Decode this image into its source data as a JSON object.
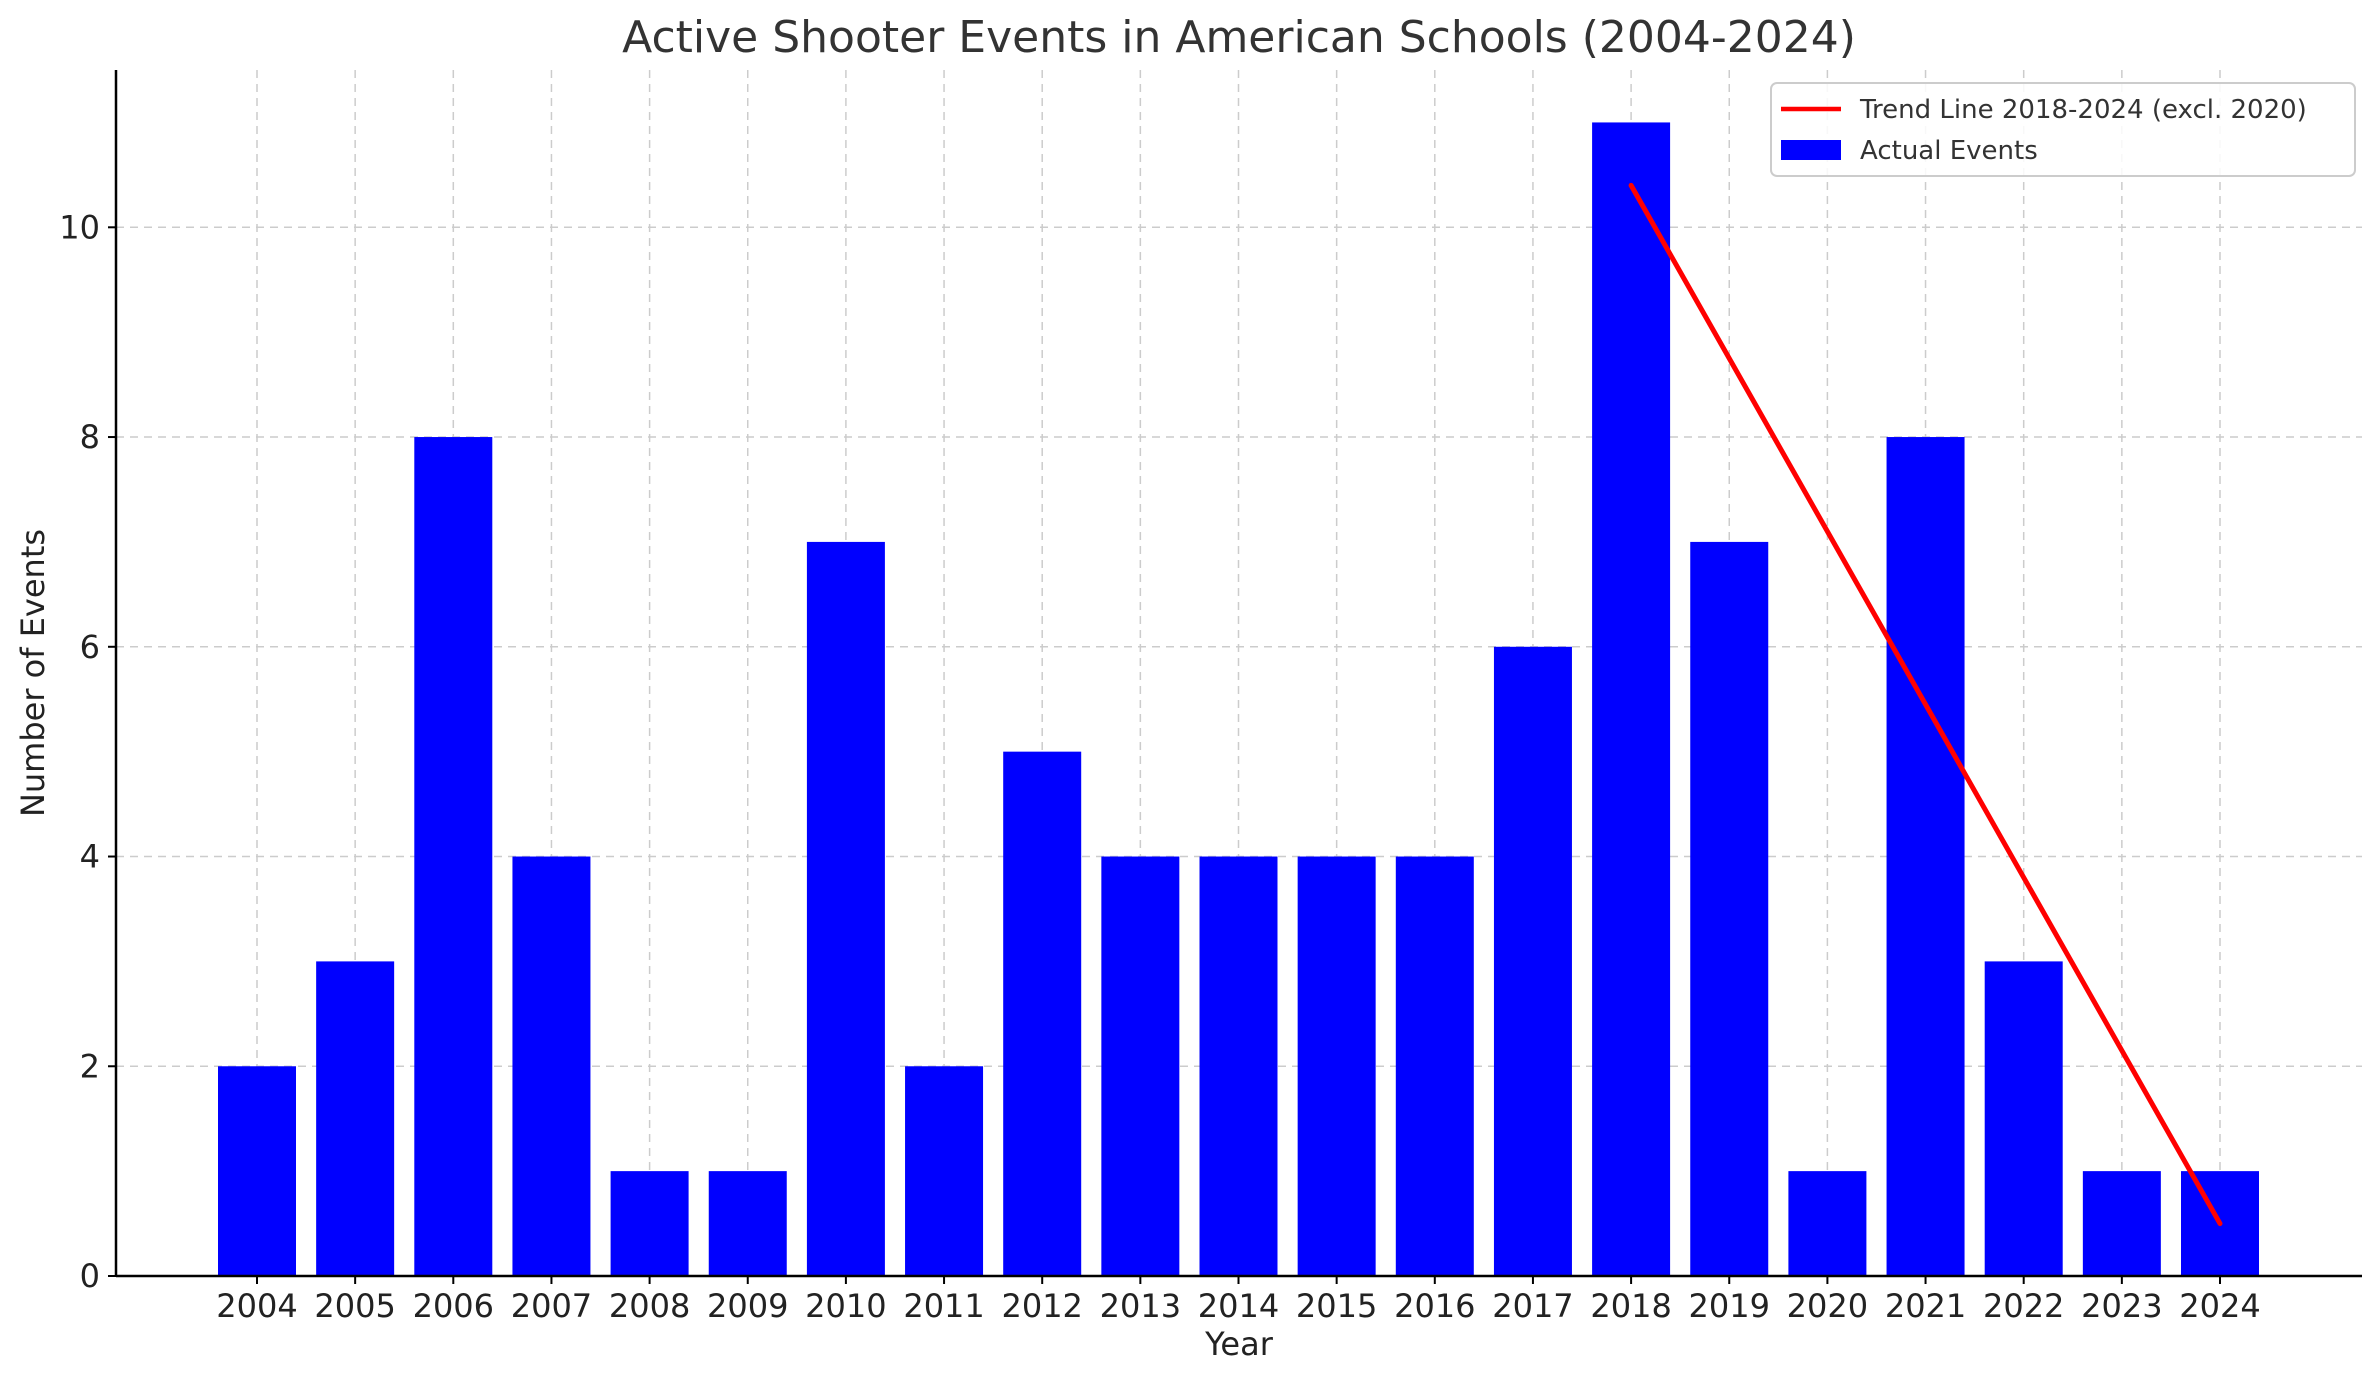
{
  "chart_data": {
    "type": "bar",
    "title": "Active Shooter Events in American Schools (2004-2024)",
    "xlabel": "Year",
    "ylabel": "Number of Events",
    "categories": [
      "2004",
      "2005",
      "2006",
      "2007",
      "2008",
      "2009",
      "2010",
      "2011",
      "2012",
      "2013",
      "2014",
      "2015",
      "2016",
      "2017",
      "2018",
      "2019",
      "2020",
      "2021",
      "2022",
      "2023",
      "2024"
    ],
    "series": [
      {
        "name": "Actual Events",
        "type": "bar",
        "color": "#0000ff",
        "values": [
          2,
          3,
          8,
          4,
          1,
          1,
          7,
          2,
          5,
          4,
          4,
          4,
          4,
          6,
          11,
          7,
          1,
          8,
          3,
          1,
          1
        ]
      },
      {
        "name": "Trend Line 2018-2024 (excl. 2020)",
        "type": "line",
        "color": "#ff0000",
        "x": [
          "2018",
          "2024"
        ],
        "values": [
          10.4,
          0.5
        ]
      }
    ],
    "ylim": [
      0,
      11.5
    ],
    "yticks": [
      0,
      2,
      4,
      6,
      8,
      10
    ],
    "grid": true,
    "legend_position": "top-right"
  }
}
